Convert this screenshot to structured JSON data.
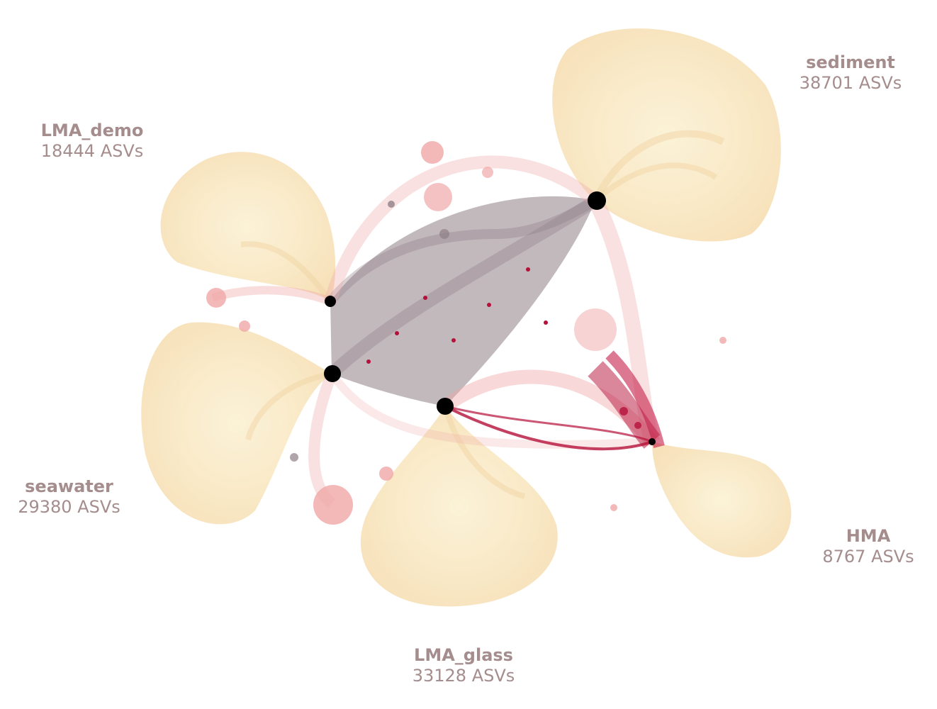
{
  "nodes": [
    {
      "id": "sediment",
      "name": "sediment",
      "count": "38701 ASVs"
    },
    {
      "id": "lma_demo",
      "name": "LMA_demo",
      "count": "18444 ASVs"
    },
    {
      "id": "seawater",
      "name": "seawater",
      "count": "29380 ASVs"
    },
    {
      "id": "lma_glass",
      "name": "LMA_glass",
      "count": "33128 ASVs"
    },
    {
      "id": "hma",
      "name": "HMA",
      "count": "8767 ASVs"
    }
  ],
  "colors": {
    "fan": "#f6dfb3",
    "shared_edges": "#8f7f86",
    "pink_edges": "#f0a8a8",
    "hma_edges": "#b5103a",
    "hub": "#000000",
    "label": "#a58d8d"
  }
}
